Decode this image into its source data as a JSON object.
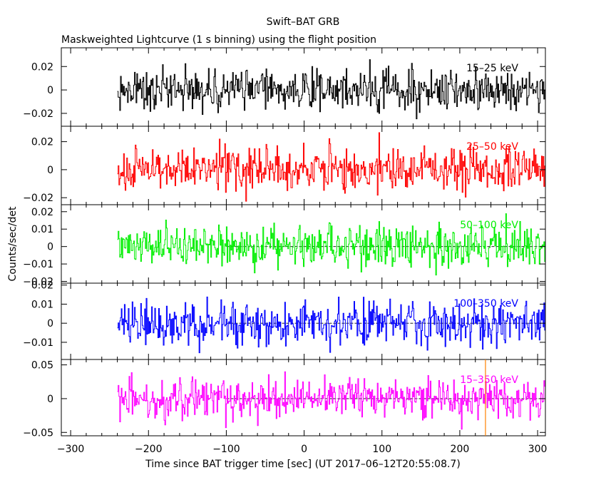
{
  "chart_data": {
    "type": "line",
    "title": "Swift–BAT GRB",
    "subtitle": "Maskweighted Lightcurve (1 s binning) using the flight position",
    "xlabel": "Time since BAT trigger time [sec] (UT 2017–06–12T20:55:08.7)",
    "ylabel": "Counts/sec/det",
    "xlim": [
      -312,
      310
    ],
    "data_start": -240,
    "x_ticks": [
      -300,
      -200,
      -100,
      0,
      100,
      200,
      300
    ],
    "x_tick_labels": [
      "−300",
      "−200",
      "−100",
      "0",
      "100",
      "200",
      "300"
    ],
    "marker_time": 233,
    "marker_color": "#ff8000",
    "panels": [
      {
        "band": "15–25 keV",
        "color": "#000000",
        "ylim": [
          -0.031,
          0.036
        ],
        "sigma": 0.0085,
        "zero_line": false,
        "ticks": [
          -0.02,
          0,
          0.02
        ],
        "tick_labels": [
          "−0.02",
          "0",
          "0.02"
        ]
      },
      {
        "band": "25–50 keV",
        "color": "#ff0000",
        "ylim": [
          -0.025,
          0.031
        ],
        "sigma": 0.0075,
        "zero_line": false,
        "ticks": [
          -0.02,
          0,
          0.02
        ],
        "tick_labels": [
          "−0.02",
          "0",
          "0.02"
        ]
      },
      {
        "band": "50–100 keV",
        "color": "#00ee00",
        "ylim": [
          -0.021,
          0.024
        ],
        "sigma": 0.006,
        "zero_line": true,
        "ticks": [
          -0.02,
          -0.01,
          0,
          0.01,
          0.02
        ],
        "tick_labels": [
          "−0.02",
          "−0.01",
          "0",
          "0.01",
          "0.02"
        ]
      },
      {
        "band": "100–350 keV",
        "color": "#0000ff",
        "ylim": [
          -0.019,
          0.021
        ],
        "sigma": 0.0055,
        "zero_line": true,
        "ticks": [
          -0.01,
          0,
          0.01,
          0.02
        ],
        "tick_labels": [
          "−0.01",
          "0",
          "0.01",
          "0.02"
        ]
      },
      {
        "band": "15–350 keV",
        "color": "#ff00ff",
        "ylim": [
          -0.055,
          0.058
        ],
        "sigma": 0.014,
        "zero_line": true,
        "ticks": [
          -0.05,
          0,
          0.05
        ],
        "tick_labels": [
          "−0.05",
          "0",
          "0.05"
        ]
      }
    ]
  }
}
